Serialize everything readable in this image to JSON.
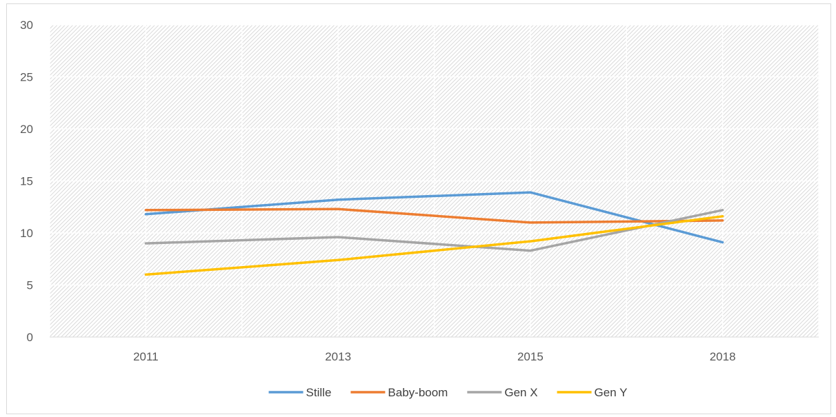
{
  "chart_data": {
    "type": "line",
    "title": "",
    "xlabel": "",
    "ylabel": "",
    "categories": [
      "2011",
      "2013",
      "2015",
      "2018"
    ],
    "ylim": [
      0,
      30
    ],
    "yticks": [
      0,
      5,
      10,
      15,
      20,
      25,
      30
    ],
    "grid": true,
    "plot_background": "hatched",
    "legend_position": "bottom",
    "series": [
      {
        "name": "Stille",
        "color": "#5B9BD5",
        "values": [
          11.8,
          13.2,
          13.9,
          9.1
        ]
      },
      {
        "name": "Baby-boom",
        "color": "#ED7D31",
        "values": [
          12.2,
          12.3,
          11.0,
          11.2
        ]
      },
      {
        "name": "Gen X",
        "color": "#A5A5A5",
        "values": [
          9.0,
          9.6,
          8.3,
          12.2
        ]
      },
      {
        "name": "Gen Y",
        "color": "#FFC000",
        "values": [
          6.0,
          7.4,
          9.2,
          11.6
        ]
      }
    ]
  }
}
